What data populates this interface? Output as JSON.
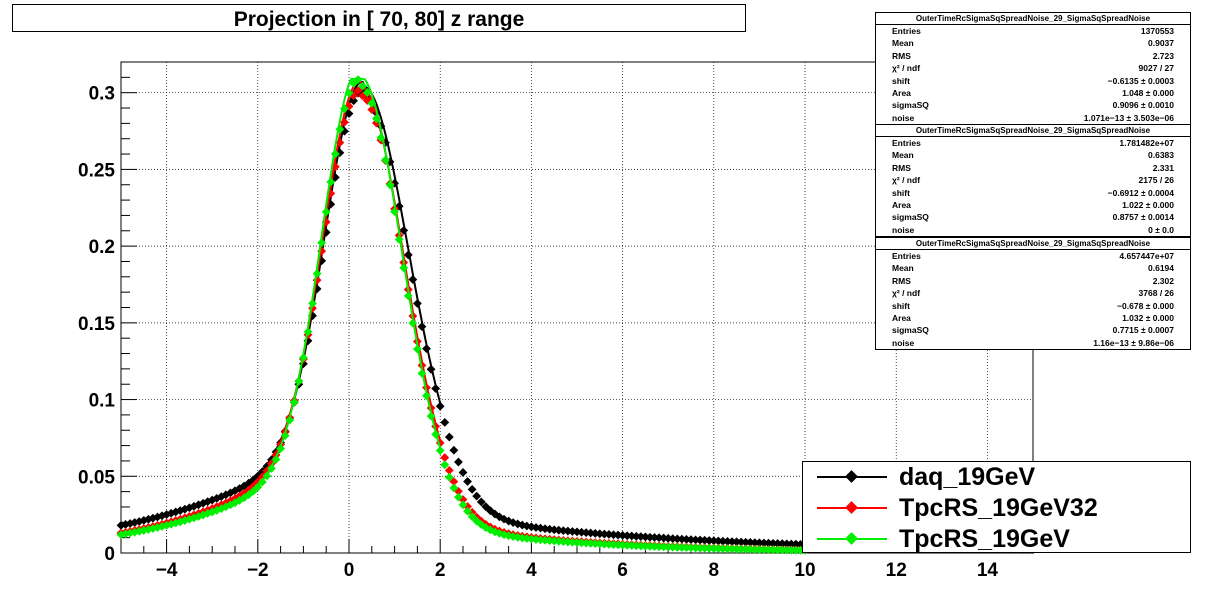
{
  "title": "Projection in [  70,  80] z range",
  "stats_boxes": [
    {
      "title": "OuterTimeRcSigmaSqSpreadNoise_29_SigmaSqSpreadNoise",
      "rows": [
        {
          "key": "Entries",
          "value": "1370553"
        },
        {
          "key": "Mean",
          "value": "0.9037"
        },
        {
          "key": "RMS",
          "value": "2.723"
        },
        {
          "key": "χ² / ndf",
          "value": "9027 / 27"
        },
        {
          "key": "shift",
          "value": "−0.6135 ± 0.0003"
        },
        {
          "key": "Area",
          "value": "1.048 ± 0.000"
        },
        {
          "key": "sigmaSQ",
          "value": "0.9096 ± 0.0010"
        },
        {
          "key": "noise",
          "value": "1.071e−13 ± 3.503e−06"
        }
      ]
    },
    {
      "title": "OuterTimeRcSigmaSqSpreadNoise_29_SigmaSqSpreadNoise",
      "rows": [
        {
          "key": "Entries",
          "value": "1.781482e+07"
        },
        {
          "key": "Mean",
          "value": "0.6383"
        },
        {
          "key": "RMS",
          "value": "2.331"
        },
        {
          "key": "χ² / ndf",
          "value": "2175 / 26"
        },
        {
          "key": "shift",
          "value": "−0.6912 ± 0.0004"
        },
        {
          "key": "Area",
          "value": "1.022 ± 0.000"
        },
        {
          "key": "sigmaSQ",
          "value": "0.8757 ± 0.0014"
        },
        {
          "key": "noise",
          "value": "0 ± 0.0"
        }
      ]
    },
    {
      "title": "OuterTimeRcSigmaSqSpreadNoise_29_SigmaSqSpreadNoise",
      "rows": [
        {
          "key": "Entries",
          "value": "4.657447e+07"
        },
        {
          "key": "Mean",
          "value": "0.6194"
        },
        {
          "key": "RMS",
          "value": "2.302"
        },
        {
          "key": "χ² / ndf",
          "value": "3768 / 26"
        },
        {
          "key": "shift",
          "value": "−0.678 ± 0.000"
        },
        {
          "key": "Area",
          "value": "1.032 ± 0.000"
        },
        {
          "key": "sigmaSQ",
          "value": "0.7715 ± 0.0007"
        },
        {
          "key": "noise",
          "value": "1.16e−13 ± 9.86e−06"
        }
      ]
    }
  ],
  "legend": {
    "position": "bottom-right",
    "entries": [
      {
        "label": "daq_19GeV",
        "color": "#000000"
      },
      {
        "label": "TpcRS_19GeV32",
        "color": "#ff0000"
      },
      {
        "label": "TpcRS_19GeV",
        "color": "#00ee00"
      }
    ]
  },
  "chart_data": {
    "type": "scatter",
    "title": "Projection in [  70,  80] z range",
    "xlabel": "",
    "ylabel": "",
    "xlim": [
      -5,
      15
    ],
    "ylim": [
      0,
      0.32
    ],
    "x_ticks": [
      -4,
      -2,
      0,
      2,
      4,
      6,
      8,
      10,
      12,
      14
    ],
    "y_ticks": [
      0,
      0.05,
      0.1,
      0.15,
      0.2,
      0.25,
      0.3
    ],
    "y_tick_labels": [
      "0",
      "0.05",
      "0.1",
      "0.15",
      "0.2",
      "0.25",
      "0.3"
    ],
    "grid": true,
    "series": [
      {
        "name": "daq_19GeV",
        "color": "#000000",
        "marker": "diamond",
        "x_range": [
          -5,
          15
        ],
        "params": {
          "mu": 0.3,
          "s1": 0.88,
          "s2": 1.05,
          "A": 0.298,
          "tl": 0.018,
          "Ltl": 2.7,
          "tr": 0.026,
          "Ltr": 5.5
        }
      },
      {
        "name": "TpcRS_19GeV32",
        "color": "#ff0000",
        "marker": "diamond",
        "x_range": [
          -5,
          10
        ],
        "params": {
          "mu": 0.25,
          "s1": 0.86,
          "s2": 0.98,
          "A": 0.298,
          "tl": 0.013,
          "Ltl": 2.2,
          "tr": 0.02,
          "Ltr": 3.6
        }
      },
      {
        "name": "TpcRS_19GeV",
        "color": "#00ee00",
        "marker": "diamond",
        "x_range": [
          -5,
          10
        ],
        "params": {
          "mu": 0.22,
          "s1": 0.84,
          "s2": 0.97,
          "A": 0.305,
          "tl": 0.012,
          "Ltl": 2.2,
          "tr": 0.018,
          "Ltr": 3.6
        }
      }
    ]
  }
}
